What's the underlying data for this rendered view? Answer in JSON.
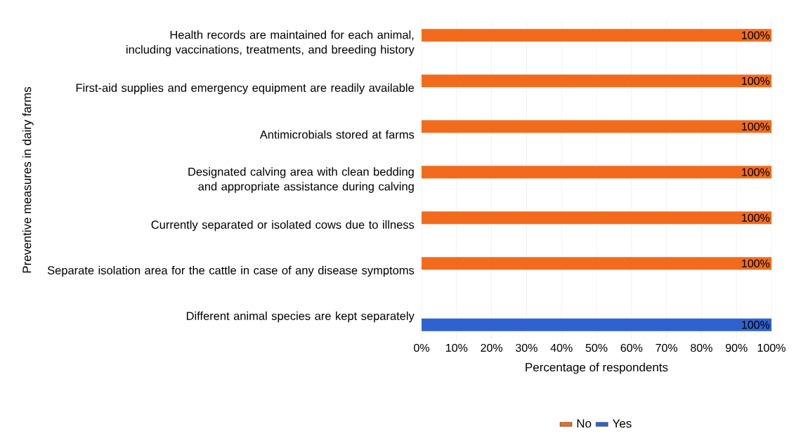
{
  "chart_data": {
    "type": "bar",
    "orientation": "horizontal",
    "ylabel": "Preventive measures in dairy farms",
    "xlabel": "Percentage of respondents",
    "categories": [
      "Health records are maintained for each animal, including vaccinations, treatments, and breeding history",
      "First-aid supplies and emergency equipment are readily available",
      "Antimicrobials stored at farms",
      "Designated calving area with clean bedding and appropriate assistance during calving",
      "Currently separated or isolated cows due to illness",
      "Separate isolation area for the cattle in case of any disease symptoms",
      "Different animal species are kept separately"
    ],
    "series": [
      {
        "name": "No",
        "color": "#f26b1d",
        "values": [
          100,
          100,
          100,
          100,
          100,
          100,
          null
        ],
        "value_labels": [
          "100%",
          "100%",
          "100%",
          "100%",
          "100%",
          "100%",
          null
        ]
      },
      {
        "name": "Yes",
        "color": "#2f62d0",
        "values": [
          null,
          null,
          null,
          null,
          null,
          null,
          100
        ],
        "value_labels": [
          null,
          null,
          null,
          null,
          null,
          null,
          "100%"
        ]
      }
    ],
    "xlim": [
      0,
      100
    ],
    "xticks": [
      {
        "value": 0,
        "label": "0%"
      },
      {
        "value": 10,
        "label": "10%"
      },
      {
        "value": 20,
        "label": "20%"
      },
      {
        "value": 30,
        "label": "30%"
      },
      {
        "value": 40,
        "label": "40%"
      },
      {
        "value": 50,
        "label": "50%"
      },
      {
        "value": 60,
        "label": "60%"
      },
      {
        "value": 70,
        "label": "70%"
      },
      {
        "value": 80,
        "label": "80%"
      },
      {
        "value": 90,
        "label": "90%"
      },
      {
        "value": 100,
        "label": "100%"
      }
    ],
    "grid": "x",
    "legend": "bottom"
  }
}
